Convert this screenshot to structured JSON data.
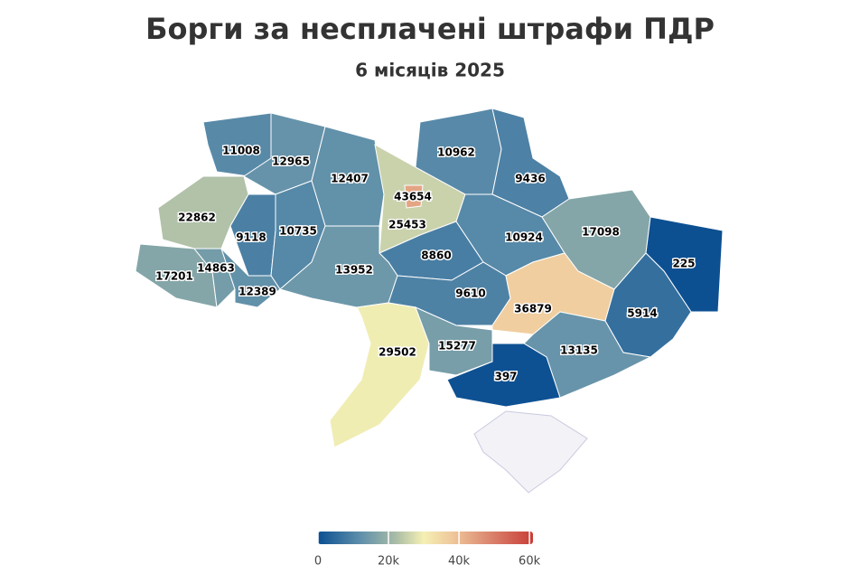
{
  "chart_data": {
    "type": "choropleth",
    "title": "Борги за несплачені штрафи ПДР",
    "subtitle": "6 місяців 2025",
    "values": [
      11008,
      12965,
      12407,
      43654,
      25453,
      10962,
      9436,
      22862,
      9118,
      10735,
      8860,
      10924,
      17098,
      225,
      17201,
      14863,
      12389,
      13952,
      9610,
      36879,
      5914,
      29502,
      15277,
      13135,
      397
    ],
    "zlim": [
      0,
      61000
    ],
    "zticks": [
      0,
      {
        "value": 20000,
        "label": "20k"
      },
      {
        "value": 40000,
        "label": "40k"
      },
      {
        "value": 60000,
        "label": "60k"
      }
    ],
    "colorscale": [
      [
        0,
        "#0b4f92"
      ],
      [
        12000,
        "#5f8faa"
      ],
      [
        22000,
        "#a9bca6"
      ],
      [
        30000,
        "#f5f0b4"
      ],
      [
        38000,
        "#efc89b"
      ],
      [
        48000,
        "#dc8a72"
      ],
      [
        61000,
        "#c83d37"
      ]
    ]
  }
}
